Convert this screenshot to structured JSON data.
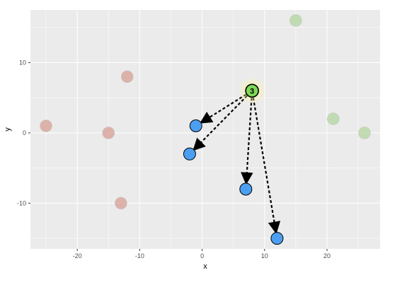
{
  "chart_data": {
    "type": "scatter",
    "xlabel": "x",
    "ylabel": "y",
    "xlim": [
      -27.5,
      28.5
    ],
    "ylim": [
      -16.5,
      17.5
    ],
    "x_ticks": [
      -20,
      -10,
      0,
      10,
      20
    ],
    "y_ticks": [
      -10,
      0,
      10
    ],
    "grid": true,
    "legend": "none",
    "colors": {
      "panel": "#ebebeb",
      "grid": "#ffffff",
      "red_faded": "#d9a79f",
      "green_faded": "#b9d8a8",
      "blue": "#4c9ef0",
      "highlight": "#7ed957",
      "highlight_glow": "#fff6a0",
      "arrow": "#000000"
    },
    "series": [
      {
        "group": "red",
        "faded": true,
        "points": [
          {
            "x": -12,
            "y": 8
          },
          {
            "x": -25,
            "y": 1
          },
          {
            "x": -15,
            "y": 0
          },
          {
            "x": -13,
            "y": -10
          }
        ]
      },
      {
        "group": "green",
        "faded": true,
        "points": [
          {
            "x": 15,
            "y": 16
          },
          {
            "x": 21,
            "y": 2
          },
          {
            "x": 26,
            "y": 0
          }
        ]
      },
      {
        "group": "blue",
        "faded": false,
        "points": [
          {
            "x": -1,
            "y": 1
          },
          {
            "x": -2,
            "y": -3
          },
          {
            "x": 7,
            "y": -8
          },
          {
            "x": 12,
            "y": -15
          }
        ]
      }
    ],
    "highlight": {
      "x": 8,
      "y": 6,
      "label": "3"
    },
    "arrows": [
      {
        "from": [
          8,
          6
        ],
        "to": [
          -1,
          1
        ]
      },
      {
        "from": [
          8,
          6
        ],
        "to": [
          -2,
          -3
        ]
      },
      {
        "from": [
          8,
          6
        ],
        "to": [
          7,
          -8
        ]
      },
      {
        "from": [
          8,
          6
        ],
        "to": [
          12,
          -15
        ]
      }
    ]
  }
}
